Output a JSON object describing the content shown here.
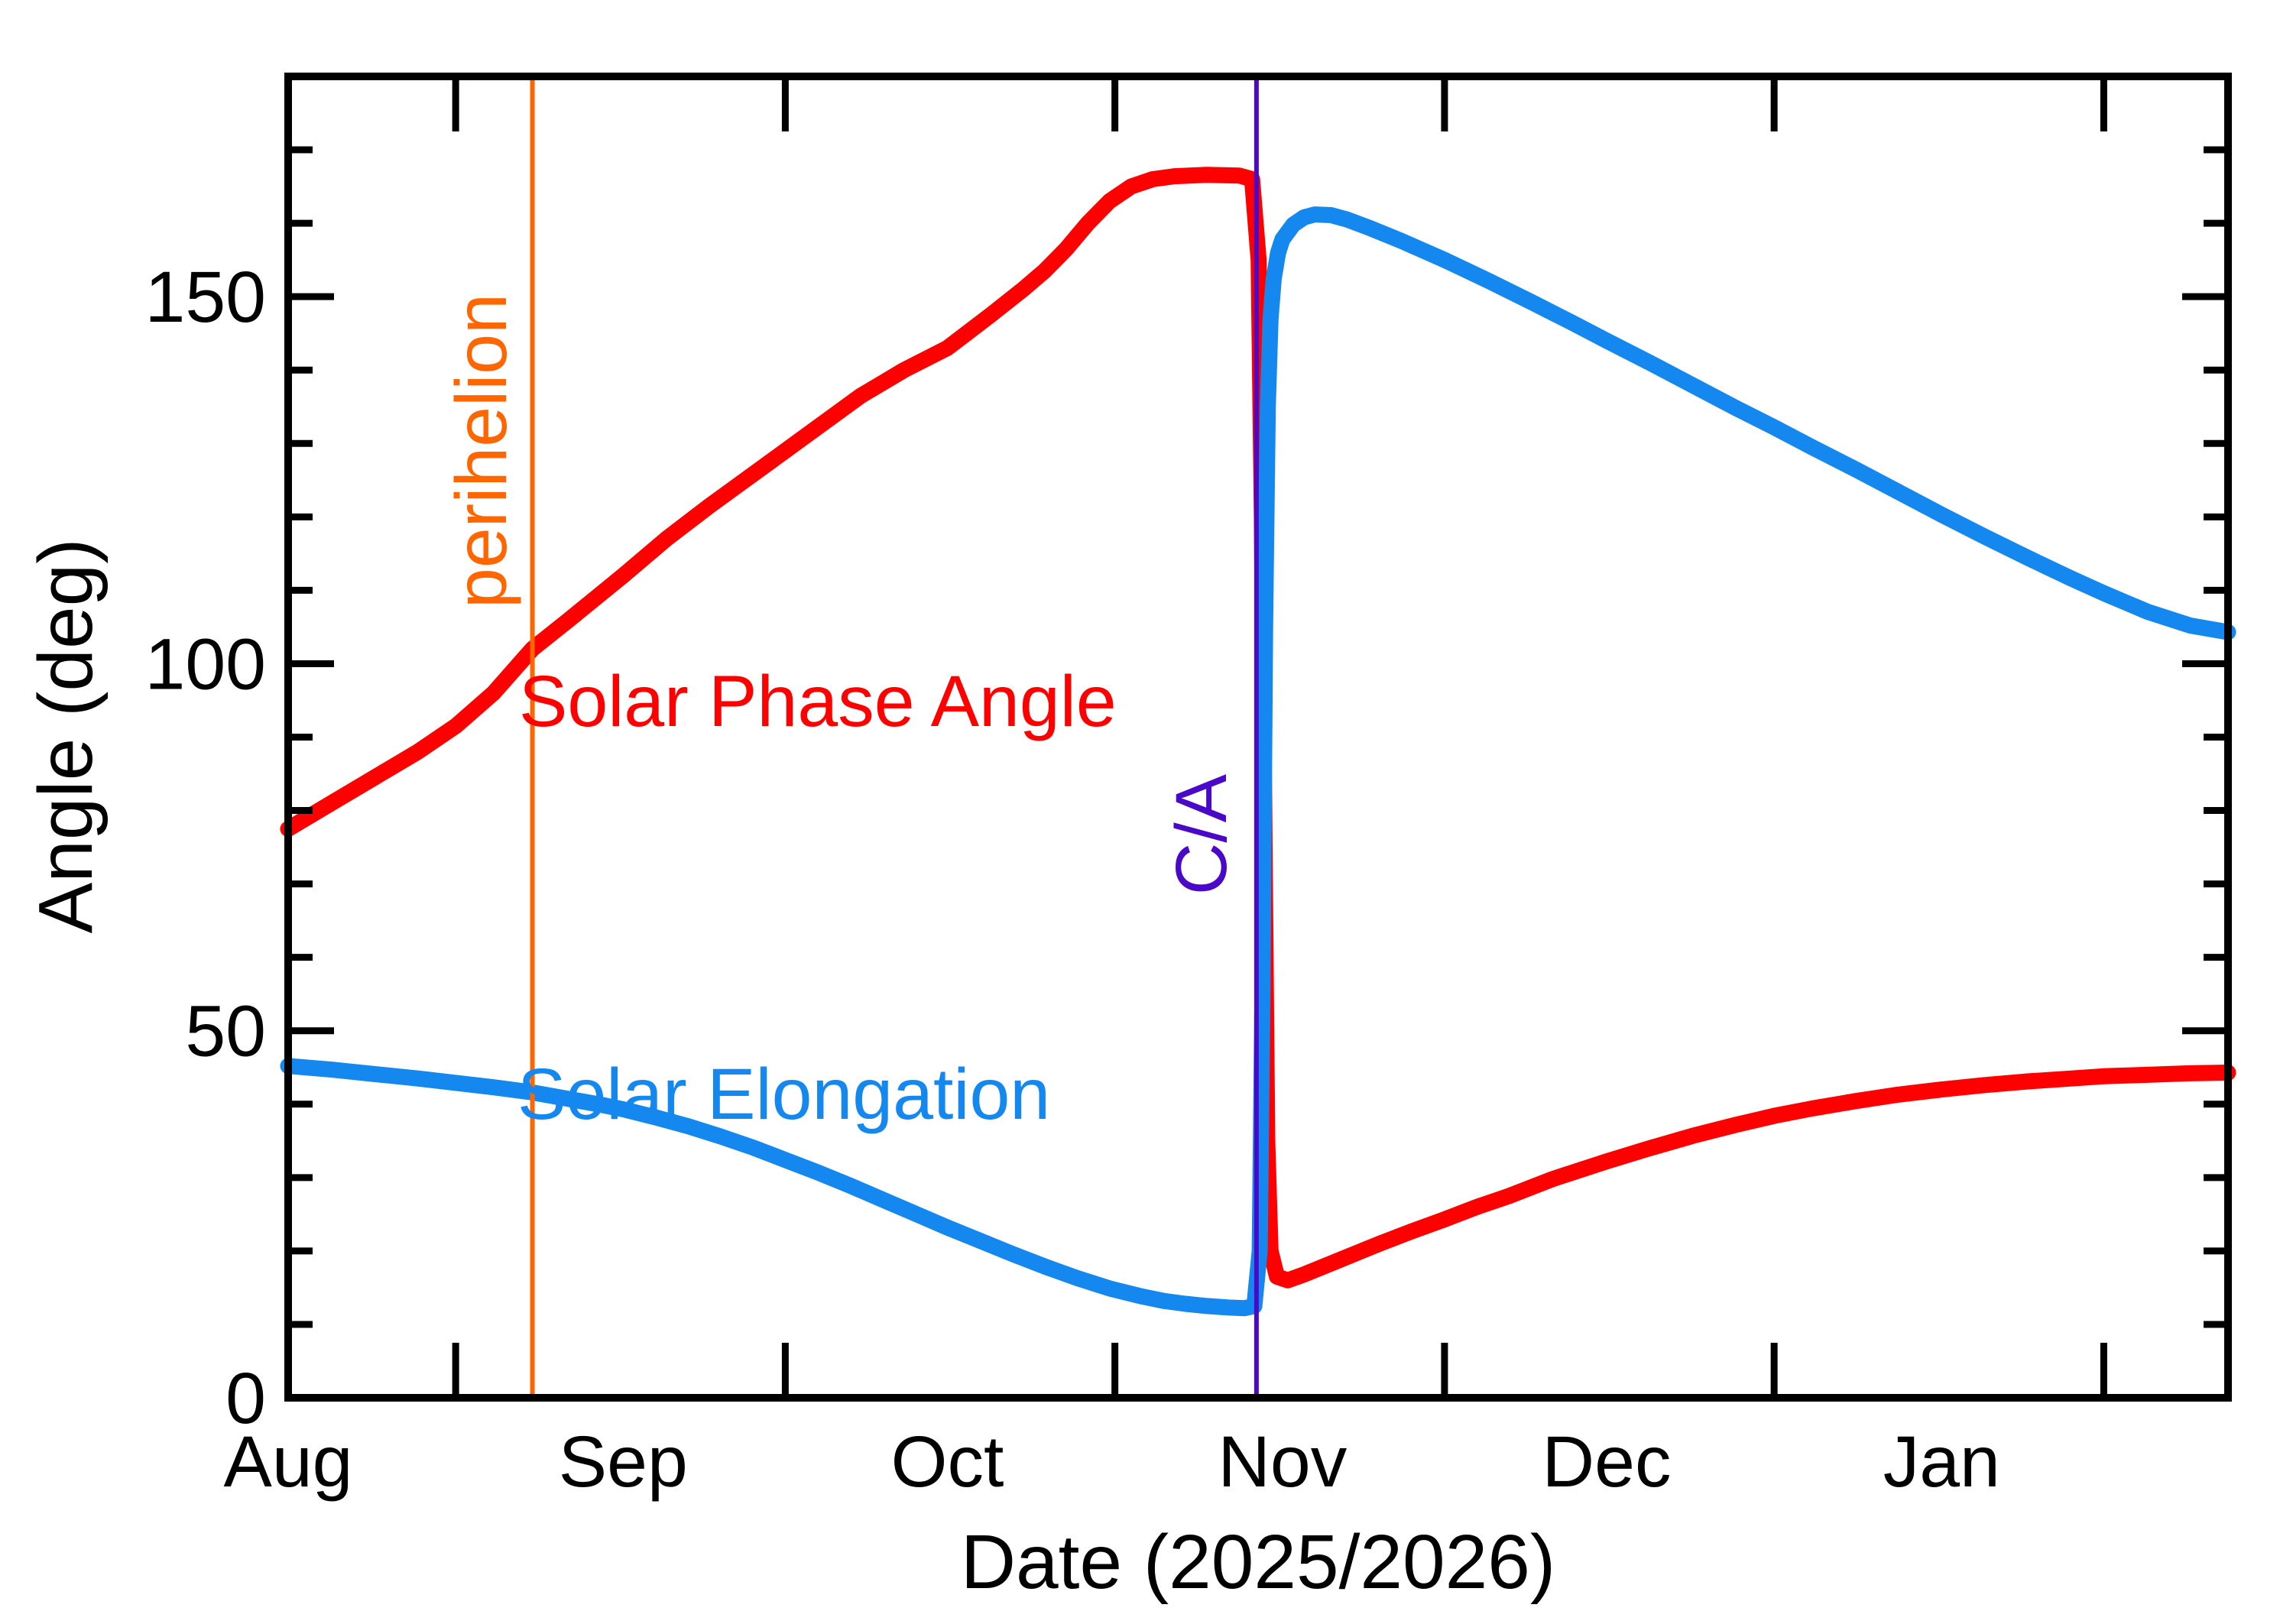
{
  "figure": {
    "background": "#FFFFFF",
    "axis_color": "#000000"
  },
  "chart_data": {
    "type": "line",
    "title": "",
    "xlabel": "Date (2025/2026)",
    "ylabel": "Angle (deg)",
    "grid": false,
    "legend_position": "labels-on-plot",
    "x_axis": {
      "unit": "days since Aug 1 2025",
      "day_range": [
        0,
        179.5
      ],
      "month_labels": [
        "Aug",
        "Sep",
        "Oct",
        "Nov",
        "Dec",
        "Jan"
      ],
      "month_start_days": [
        0,
        31,
        61,
        92,
        122,
        153
      ],
      "midmonth_tick_days": [
        15.5,
        46,
        76.5,
        107,
        137.5,
        168
      ],
      "years": "2025/2026"
    },
    "y_axis": {
      "range": [
        0,
        180
      ],
      "major_tick_values": [
        0,
        50,
        100,
        150
      ],
      "major_tick_labels": [
        "0",
        "50",
        "100",
        "150"
      ],
      "minor_tick_step": 10
    },
    "series": [
      {
        "name": "Solar Phase Angle",
        "color": "#FF0000",
        "points": [
          [
            0,
            77.5
          ],
          [
            4,
            81
          ],
          [
            8,
            84.5
          ],
          [
            12,
            88
          ],
          [
            15.5,
            91.5
          ],
          [
            19,
            96
          ],
          [
            22.6,
            102
          ],
          [
            26,
            106
          ],
          [
            31,
            112
          ],
          [
            35,
            117
          ],
          [
            39,
            121.5
          ],
          [
            46,
            129
          ],
          [
            53,
            136.5
          ],
          [
            57,
            140
          ],
          [
            61,
            143
          ],
          [
            65,
            147.5
          ],
          [
            68,
            151
          ],
          [
            70,
            153.5
          ],
          [
            72,
            156.5
          ],
          [
            74,
            160
          ],
          [
            76,
            163
          ],
          [
            78,
            165
          ],
          [
            80,
            166
          ],
          [
            82,
            166.4
          ],
          [
            85,
            166.6
          ],
          [
            88,
            166.5
          ],
          [
            89.2,
            166
          ],
          [
            89.8,
            155
          ],
          [
            90.1,
            120
          ],
          [
            90.35,
            75
          ],
          [
            90.6,
            35
          ],
          [
            90.9,
            20
          ],
          [
            91.5,
            16.5
          ],
          [
            92.5,
            16
          ],
          [
            94,
            16.8
          ],
          [
            96,
            18
          ],
          [
            98,
            19.2
          ],
          [
            101,
            21
          ],
          [
            104,
            22.7
          ],
          [
            107,
            24.3
          ],
          [
            110,
            26
          ],
          [
            113,
            27.5
          ],
          [
            117,
            29.8
          ],
          [
            122,
            32.2
          ],
          [
            126,
            34
          ],
          [
            130,
            35.7
          ],
          [
            134,
            37.2
          ],
          [
            137.5,
            38.4
          ],
          [
            141,
            39.4
          ],
          [
            145,
            40.4
          ],
          [
            149,
            41.3
          ],
          [
            153,
            42
          ],
          [
            157,
            42.6
          ],
          [
            161,
            43.1
          ],
          [
            165,
            43.5
          ],
          [
            168,
            43.8
          ],
          [
            172,
            44
          ],
          [
            176,
            44.2
          ],
          [
            179.5,
            44.3
          ]
        ]
      },
      {
        "name": "Solar Elongation",
        "color": "#1588F0",
        "points": [
          [
            0,
            45.2
          ],
          [
            4,
            44.7
          ],
          [
            8,
            44.1
          ],
          [
            12,
            43.5
          ],
          [
            15.5,
            42.9
          ],
          [
            19,
            42.3
          ],
          [
            22.6,
            41.6
          ],
          [
            26,
            40.7
          ],
          [
            29,
            39.9
          ],
          [
            31,
            39.3
          ],
          [
            34,
            38.2
          ],
          [
            37,
            37
          ],
          [
            40,
            35.6
          ],
          [
            43,
            34.1
          ],
          [
            46,
            32.4
          ],
          [
            49,
            30.7
          ],
          [
            52,
            28.9
          ],
          [
            55,
            27
          ],
          [
            58,
            25.1
          ],
          [
            61,
            23.2
          ],
          [
            64,
            21.4
          ],
          [
            67,
            19.6
          ],
          [
            70,
            17.9
          ],
          [
            73,
            16.3
          ],
          [
            76,
            14.9
          ],
          [
            79,
            13.8
          ],
          [
            81,
            13.2
          ],
          [
            83,
            12.8
          ],
          [
            85,
            12.5
          ],
          [
            87,
            12.3
          ],
          [
            88.5,
            12.2
          ],
          [
            89.4,
            12.5
          ],
          [
            89.9,
            20
          ],
          [
            90.15,
            55
          ],
          [
            90.4,
            105
          ],
          [
            90.65,
            135
          ],
          [
            90.9,
            147
          ],
          [
            91.2,
            152.5
          ],
          [
            91.6,
            156
          ],
          [
            92,
            157.8
          ],
          [
            93,
            159.8
          ],
          [
            94,
            160.8
          ],
          [
            95,
            161.2
          ],
          [
            96.5,
            161.1
          ],
          [
            98,
            160.5
          ],
          [
            100,
            159.4
          ],
          [
            103,
            157.6
          ],
          [
            107,
            155
          ],
          [
            111,
            152.2
          ],
          [
            115,
            149.3
          ],
          [
            119,
            146.3
          ],
          [
            122,
            144
          ],
          [
            126,
            141
          ],
          [
            130,
            137.9
          ],
          [
            134,
            134.8
          ],
          [
            137.5,
            132.2
          ],
          [
            141,
            129.5
          ],
          [
            145,
            126.5
          ],
          [
            149,
            123.4
          ],
          [
            153,
            120.3
          ],
          [
            157,
            117.3
          ],
          [
            161,
            114.4
          ],
          [
            165,
            111.6
          ],
          [
            168,
            109.6
          ],
          [
            172,
            107.1
          ],
          [
            176,
            105.2
          ],
          [
            179.5,
            104.3
          ]
        ]
      }
    ],
    "vlines": [
      {
        "label": "perihelion",
        "color": "#FF6600",
        "day": 22.6,
        "date": "2025-Aug-23"
      },
      {
        "label": "C/A",
        "color": "#4A08C8",
        "day": 89.6,
        "date": "2025-Oct-30"
      }
    ]
  }
}
